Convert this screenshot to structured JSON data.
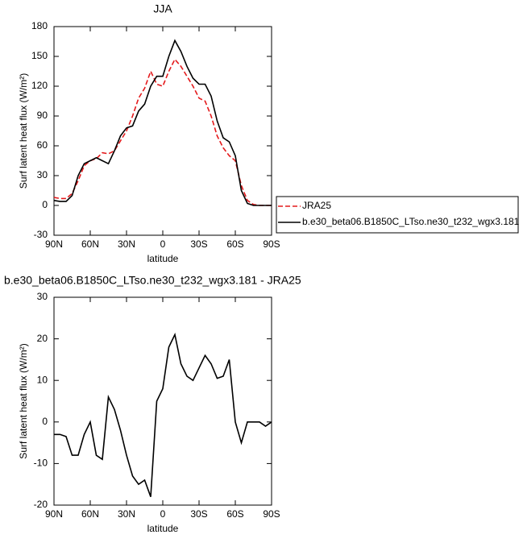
{
  "chart_data": [
    {
      "type": "line",
      "title": "JJA",
      "xlabel": "latitude",
      "ylabel": "Surf latent heat flux (W/m²)",
      "x": [
        90,
        85,
        80,
        75,
        70,
        65,
        60,
        55,
        50,
        45,
        40,
        35,
        30,
        25,
        20,
        15,
        10,
        5,
        0,
        -5,
        -10,
        -15,
        -20,
        -25,
        -30,
        -35,
        -40,
        -45,
        -50,
        -55,
        -60,
        -65,
        -70,
        -75,
        -80,
        -85,
        -90
      ],
      "series": [
        {
          "name": "JRA25",
          "color": "#e41a1c",
          "dash": true,
          "values": [
            8,
            7,
            7,
            12,
            25,
            40,
            45,
            47,
            53,
            52,
            55,
            65,
            75,
            90,
            108,
            118,
            135,
            122,
            120,
            135,
            147,
            140,
            130,
            120,
            108,
            105,
            90,
            70,
            58,
            50,
            45,
            20,
            5,
            1,
            0,
            0,
            0
          ]
        },
        {
          "name": "b.e30_beta06.B1850C_LTso.ne30_t232_wgx3.181",
          "color": "#000000",
          "dash": false,
          "values": [
            5,
            4,
            4,
            10,
            30,
            42,
            45,
            48,
            45,
            42,
            55,
            70,
            78,
            80,
            95,
            102,
            120,
            130,
            130,
            150,
            166,
            155,
            140,
            128,
            122,
            122,
            110,
            85,
            68,
            64,
            50,
            15,
            2,
            0,
            0,
            0,
            0
          ]
        }
      ],
      "xlim": [
        90,
        -90
      ],
      "xticks": [
        {
          "value": 90,
          "label": "90N"
        },
        {
          "value": 60,
          "label": "60N"
        },
        {
          "value": 30,
          "label": "30N"
        },
        0,
        {
          "value": -30,
          "label": "30S"
        },
        {
          "value": -60,
          "label": "60S"
        },
        {
          "value": -90,
          "label": "90S"
        }
      ],
      "ylim": [
        -30,
        180
      ],
      "yticks": [
        -30,
        0,
        30,
        60,
        90,
        120,
        150,
        180
      ],
      "legend": "right"
    },
    {
      "type": "line",
      "title": "b.e30_beta06.B1850C_LTso.ne30_t232_wgx3.181 - JRA25",
      "xlabel": "latitude",
      "ylabel": "Surf latent heat flux (W/m²)",
      "x": [
        90,
        85,
        80,
        75,
        70,
        65,
        60,
        55,
        50,
        45,
        40,
        35,
        30,
        25,
        20,
        15,
        10,
        5,
        0,
        -5,
        -10,
        -15,
        -20,
        -25,
        -30,
        -35,
        -40,
        -45,
        -50,
        -55,
        -60,
        -65,
        -70,
        -75,
        -80,
        -85,
        -90
      ],
      "series": [
        {
          "color": "#000000",
          "dash": false,
          "values": [
            -3,
            -3,
            -3.5,
            -8,
            -8,
            -3,
            0,
            -8,
            -9,
            6,
            3,
            -2,
            -8,
            -13,
            -15,
            -14,
            -18,
            5,
            8,
            18,
            21,
            14,
            11,
            10,
            13,
            16,
            14,
            10.5,
            11,
            15,
            0,
            -5,
            0,
            0,
            0,
            -1,
            0
          ]
        }
      ],
      "xlim": [
        90,
        -90
      ],
      "xticks": [
        {
          "value": 90,
          "label": "90N"
        },
        {
          "value": 60,
          "label": "60N"
        },
        {
          "value": 30,
          "label": "30N"
        },
        0,
        {
          "value": -30,
          "label": "30S"
        },
        {
          "value": -60,
          "label": "60S"
        },
        {
          "value": -90,
          "label": "90S"
        }
      ],
      "ylim": [
        -20,
        30
      ],
      "yticks": [
        -20,
        -10,
        0,
        10,
        20,
        30
      ]
    }
  ]
}
